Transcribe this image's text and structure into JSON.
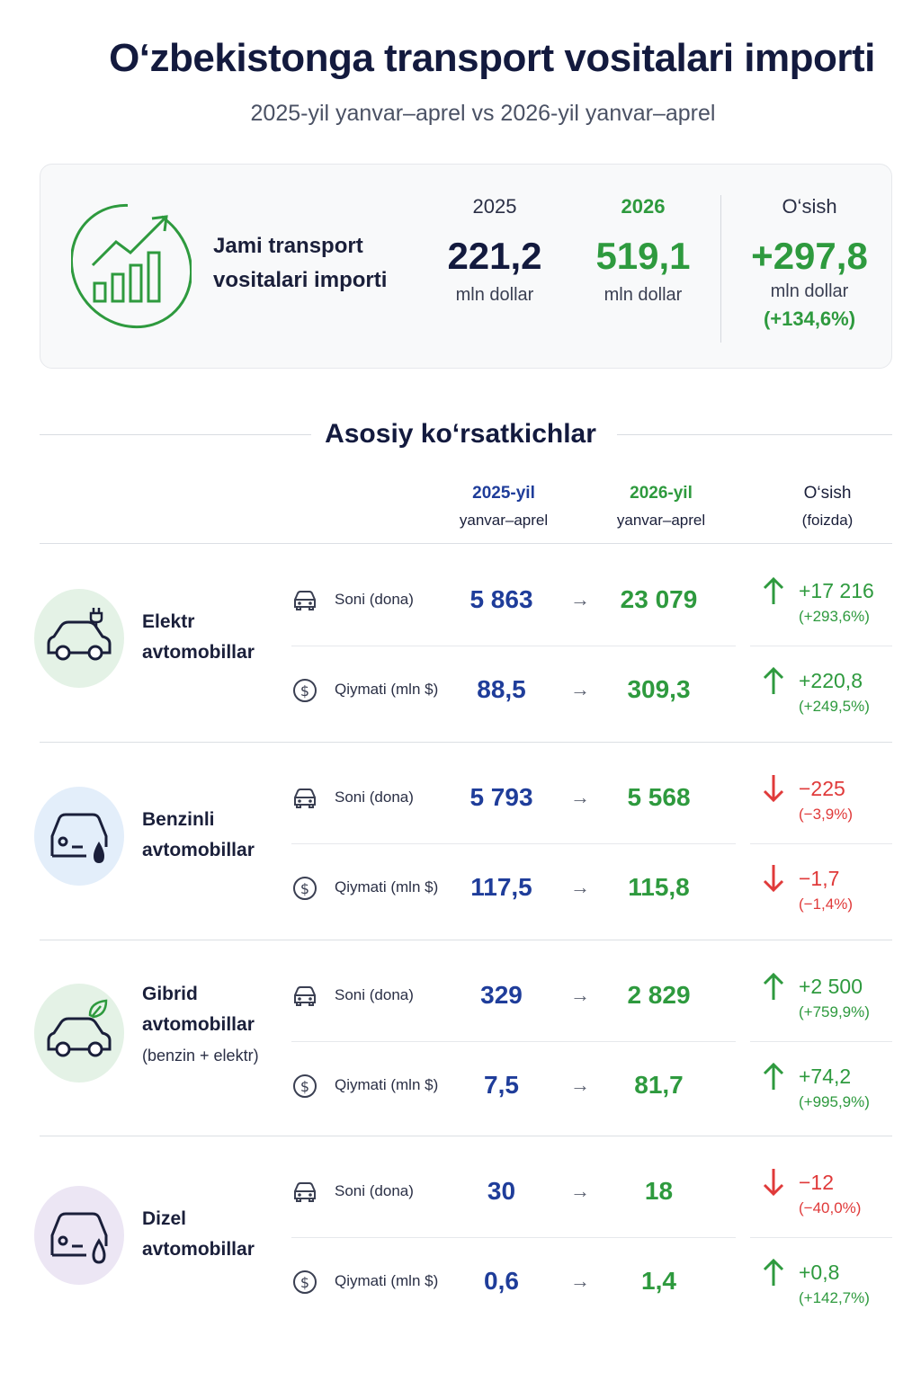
{
  "title": "O‘zbekistonga transport vositalari importi",
  "subtitle": "2025-yil yanvar–aprel vs 2026-yil yanvar–aprel",
  "summary": {
    "label": "Jami transport vositalari importi",
    "year1": "2025",
    "value1": "221,2",
    "unit1": "mln dollar",
    "year2": "2026",
    "value2": "519,1",
    "unit2": "mln dollar",
    "growth_label": "O‘sish",
    "growth_value": "+297,8",
    "growth_unit": "mln dollar",
    "growth_pct": "(+134,6%)"
  },
  "section_title": "Asosiy ko‘rsatkichlar",
  "headers": {
    "col1_line1": "2025-yil",
    "col1_line2": "yanvar–aprel",
    "col2_line1": "2026-yil",
    "col2_line2": "yanvar–aprel",
    "col3_line1": "O‘sish",
    "col3_line2": "(foizda)"
  },
  "arrow_symbol": "→",
  "categories": [
    {
      "name_line1": "Elektr",
      "name_line2": "avtomobillar",
      "name_line3": "",
      "icon": "electric-car-icon",
      "icon_bg": "#e4f2e6",
      "rows": [
        {
          "metric_icon": "car-icon",
          "label": "Soni (dona)",
          "v2025": "5 863",
          "v2026": "23 079",
          "growth": "+17 216",
          "pct": "(+293,6%)",
          "direction": "up"
        },
        {
          "metric_icon": "dollar-icon",
          "label": "Qiymati (mln $)",
          "v2025": "88,5",
          "v2026": "309,3",
          "growth": "+220,8",
          "pct": "(+249,5%)",
          "direction": "up"
        }
      ]
    },
    {
      "name_line1": "Benzinli",
      "name_line2": "avtomobillar",
      "name_line3": "",
      "icon": "petrol-car-icon",
      "icon_bg": "#e3eefa",
      "rows": [
        {
          "metric_icon": "car-icon",
          "label": "Soni (dona)",
          "v2025": "5 793",
          "v2026": "5 568",
          "growth": "−225",
          "pct": "(−3,9%)",
          "direction": "down"
        },
        {
          "metric_icon": "dollar-icon",
          "label": "Qiymati (mln $)",
          "v2025": "117,5",
          "v2026": "115,8",
          "growth": "−1,7",
          "pct": "(−1,4%)",
          "direction": "down"
        }
      ]
    },
    {
      "name_line1": "Gibrid",
      "name_line2": "avtomobillar",
      "name_line3": "(benzin + elektr)",
      "icon": "hybrid-car-icon",
      "icon_bg": "#e4f2e6",
      "rows": [
        {
          "metric_icon": "car-icon",
          "label": "Soni (dona)",
          "v2025": "329",
          "v2026": "2 829",
          "growth": "+2 500",
          "pct": "(+759,9%)",
          "direction": "up"
        },
        {
          "metric_icon": "dollar-icon",
          "label": "Qiymati (mln $)",
          "v2025": "7,5",
          "v2026": "81,7",
          "growth": "+74,2",
          "pct": "(+995,9%)",
          "direction": "up"
        }
      ]
    },
    {
      "name_line1": "Dizel",
      "name_line2": "avtomobillar",
      "name_line3": "",
      "icon": "diesel-car-icon",
      "icon_bg": "#ece6f4",
      "rows": [
        {
          "metric_icon": "car-icon",
          "label": "Soni (dona)",
          "v2025": "30",
          "v2026": "18",
          "growth": "−12",
          "pct": "(−40,0%)",
          "direction": "down"
        },
        {
          "metric_icon": "dollar-icon",
          "label": "Qiymati (mln $)",
          "v2025": "0,6",
          "v2026": "1,4",
          "growth": "+0,8",
          "pct": "(+142,7%)",
          "direction": "up"
        }
      ]
    }
  ]
}
